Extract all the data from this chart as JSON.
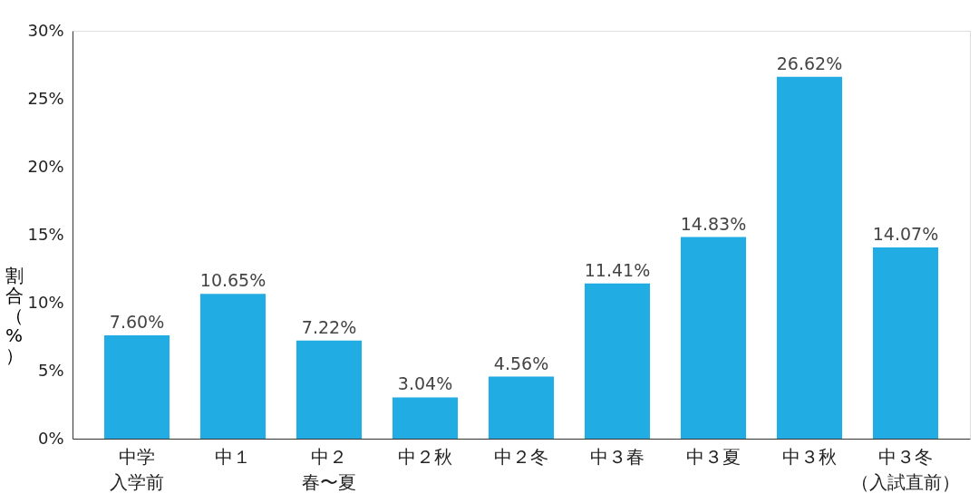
{
  "chart_data": {
    "type": "bar",
    "ylabel": "割合（%）",
    "categories": [
      "中学入学前",
      "中１",
      "中２春〜夏",
      "中２秋",
      "中２冬",
      "中３春",
      "中３夏",
      "中３秋",
      "中３冬（入試直前）"
    ],
    "values": [
      7.6,
      10.65,
      7.22,
      3.04,
      4.56,
      11.41,
      14.83,
      26.62,
      14.07
    ],
    "value_labels": [
      "7.60%",
      "10.65%",
      "7.22%",
      "3.04%",
      "4.56%",
      "11.41%",
      "14.83%",
      "26.62%",
      "14.07%"
    ],
    "color": "#21ace3",
    "ylim": [
      0,
      30
    ],
    "yticks": [
      {
        "value": 0,
        "label": "0%"
      },
      {
        "value": 5,
        "label": "5%"
      },
      {
        "value": 10,
        "label": "10%"
      },
      {
        "value": 15,
        "label": "15%"
      },
      {
        "value": 20,
        "label": "20%"
      },
      {
        "value": 25,
        "label": "25%"
      },
      {
        "value": 30,
        "label": "30%"
      }
    ],
    "grid": false
  }
}
